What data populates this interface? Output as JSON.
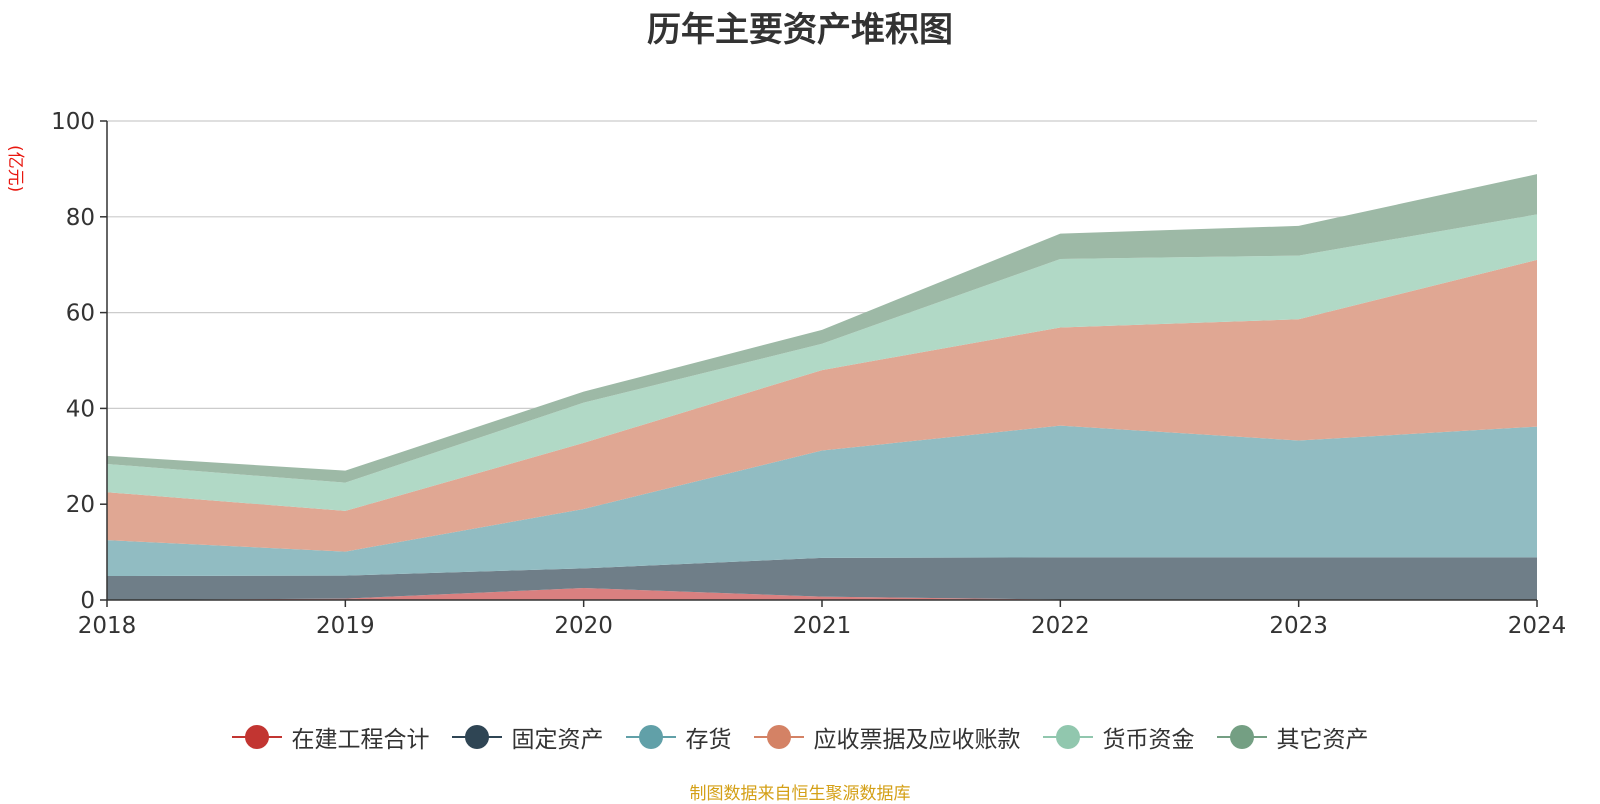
{
  "chart_data": {
    "type": "area",
    "stacked": true,
    "title": "历年主要资产堆积图",
    "unit": "(亿元)",
    "x": [
      "2018",
      "2019",
      "2020",
      "2021",
      "2022",
      "2023",
      "2024"
    ],
    "ylim": [
      0,
      100
    ],
    "yticks": [
      "0",
      "20",
      "40",
      "60",
      "80",
      "100"
    ],
    "grid": true,
    "legend_position": "bottom",
    "series": [
      {
        "name": "在建工程合计",
        "color": "#c23531",
        "fill": "#d98080",
        "values": [
          0,
          0.3,
          2.5,
          0.7,
          0.1,
          0.1,
          0.1
        ]
      },
      {
        "name": "固定资产",
        "color": "#2f4554",
        "fill": "#6f7e88",
        "values": [
          5,
          4.8,
          4.1,
          8.1,
          8.8,
          8.8,
          8.8
        ]
      },
      {
        "name": "存货",
        "color": "#61a0a8",
        "fill": "#91bcc2",
        "values": [
          7.5,
          5,
          12.4,
          22.4,
          27.5,
          24.4,
          27.3
        ]
      },
      {
        "name": "应收票据及应收账款",
        "color": "#d48265",
        "fill": "#e0a793",
        "values": [
          10,
          8.5,
          13.8,
          16.8,
          20.5,
          25.3,
          34.8
        ]
      },
      {
        "name": "货币资金",
        "color": "#91c7ae",
        "fill": "#b1d9c6",
        "values": [
          5.9,
          5.9,
          8.4,
          5.5,
          14.3,
          13.3,
          9.5
        ]
      },
      {
        "name": "其它资产",
        "color": "#749f83",
        "fill": "#9db9a6",
        "values": [
          1.7,
          2.5,
          2.3,
          2.9,
          5.3,
          6.2,
          8.4
        ]
      }
    ]
  },
  "source_note": "制图数据来自恒生聚源数据库"
}
